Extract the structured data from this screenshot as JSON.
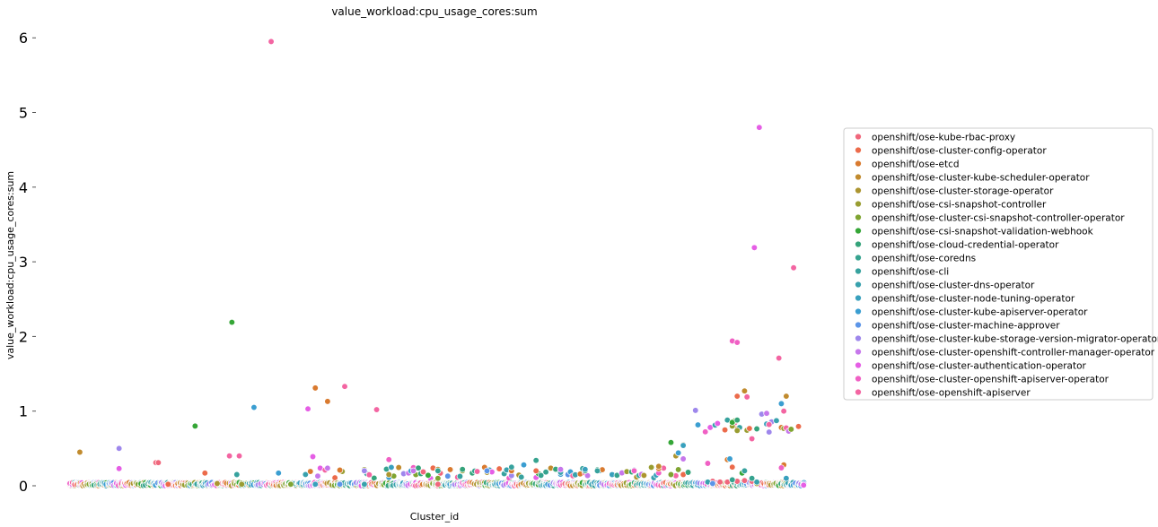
{
  "chart_data": {
    "type": "scatter",
    "title": "value_workload:cpu_usage_cores:sum",
    "xlabel": "Cluster_id",
    "ylabel": "value_workload:cpu_usage_cores:sum",
    "ylim": [
      -0.1,
      6.15
    ],
    "yticks": [
      0,
      1,
      2,
      3,
      4,
      5,
      6
    ],
    "ytick_labels": [
      "0",
      "1",
      "2",
      "3",
      "4",
      "5",
      "6"
    ],
    "x_tick_labels_shown": false,
    "grid": false,
    "legend_position": "center-right",
    "n_clusters": 300,
    "series": [
      {
        "name": "openshift/ose-kube-rbac-proxy",
        "color": "#f0677c",
        "points": [
          [
            35,
            0.31
          ],
          [
            36,
            0.31
          ],
          [
            150,
            0.02
          ],
          [
            260,
            0.05
          ],
          [
            262,
            0.06
          ],
          [
            265,
            0.05
          ],
          [
            268,
            0.05
          ],
          [
            272,
            0.06
          ],
          [
            275,
            0.07
          ],
          [
            278,
            0.06
          ]
        ]
      },
      {
        "name": "openshift/ose-cluster-config-operator",
        "color": "#ec6b4b",
        "points": [
          [
            40,
            0.02
          ],
          [
            55,
            0.17
          ],
          [
            190,
            0.2
          ],
          [
            250,
            0.15
          ],
          [
            270,
            0.25
          ],
          [
            272,
            1.2
          ]
        ]
      },
      {
        "name": "openshift/ose-etcd",
        "color": "#d97a2f",
        "points": [
          [
            100,
            1.31
          ],
          [
            105,
            1.13
          ],
          [
            110,
            0.21
          ],
          [
            180,
            0.2
          ],
          [
            240,
            0.23
          ],
          [
            268,
            0.35
          ],
          [
            291,
            0.28
          ]
        ]
      },
      {
        "name": "openshift/ose-cluster-kube-scheduler-operator",
        "color": "#c18b2e",
        "points": [
          [
            4,
            0.45
          ],
          [
            120,
            0.2
          ],
          [
            150,
            0.22
          ],
          [
            240,
            0.26
          ],
          [
            250,
            0.55
          ],
          [
            275,
            1.27
          ],
          [
            292,
            1.2
          ]
        ]
      },
      {
        "name": "openshift/ose-cluster-storage-operator",
        "color": "#ac9530",
        "points": [
          [
            60,
            0.03
          ],
          [
            130,
            0.15
          ],
          [
            170,
            0.18
          ],
          [
            247,
            0.4
          ],
          [
            280,
            0.03
          ]
        ]
      },
      {
        "name": "openshift/ose-csi-snapshot-controller",
        "color": "#999d31",
        "points": [
          [
            70,
            0.02
          ],
          [
            160,
            0.2
          ],
          [
            200,
            0.22
          ],
          [
            270,
            0.8
          ],
          [
            272,
            0.74
          ]
        ]
      },
      {
        "name": "openshift/ose-cluster-csi-snapshot-controller-operator",
        "color": "#7fa431",
        "points": [
          [
            90,
            0.02
          ],
          [
            150,
            0.1
          ],
          [
            245,
            0.15
          ],
          [
            271,
            0.87
          ]
        ]
      },
      {
        "name": "openshift/ose-csi-snapshot-validation-webhook",
        "color": "#35a637",
        "points": [
          [
            51,
            0.8
          ],
          [
            66,
            2.19
          ],
          [
            146,
            0.14
          ],
          [
            245,
            0.58
          ],
          [
            270,
            0.85
          ],
          [
            274,
            0.17
          ]
        ]
      },
      {
        "name": "openshift/ose-cloud-credential-operator",
        "color": "#35a37a",
        "points": [
          [
            160,
            0.22
          ],
          [
            210,
            0.2
          ],
          [
            252,
            0.18
          ],
          [
            272,
            0.88
          ]
        ]
      },
      {
        "name": "openshift/ose-coredns",
        "color": "#36a38f",
        "points": [
          [
            150,
            0.2
          ],
          [
            190,
            0.34
          ],
          [
            270,
            0.08
          ],
          [
            278,
            0.1
          ]
        ]
      },
      {
        "name": "openshift/ose-cli",
        "color": "#37a29e",
        "points": [
          [
            68,
            0.15
          ],
          [
            180,
            0.25
          ],
          [
            215,
            0.2
          ],
          [
            275,
            0.2
          ]
        ]
      },
      {
        "name": "openshift/ose-cluster-dns-operator",
        "color": "#38a1ad",
        "points": [
          [
            120,
            0.02
          ],
          [
            200,
            0.18
          ],
          [
            260,
            0.05
          ],
          [
            280,
            0.05
          ]
        ]
      },
      {
        "name": "openshift/ose-cluster-node-tuning-operator",
        "color": "#39a0bd",
        "points": [
          [
            100,
            0.02
          ],
          [
            210,
            0.22
          ],
          [
            250,
            0.54
          ],
          [
            292,
            0.1
          ]
        ]
      },
      {
        "name": "openshift/ose-cluster-kube-apiserver-operator",
        "color": "#3b9ed1",
        "points": [
          [
            75,
            1.05
          ],
          [
            85,
            0.17
          ],
          [
            185,
            0.28
          ],
          [
            248,
            0.44
          ],
          [
            269,
            0.36
          ],
          [
            290,
            1.1
          ]
        ]
      },
      {
        "name": "openshift/ose-cluster-machine-approver",
        "color": "#5c95e8",
        "points": [
          [
            110,
            0.02
          ],
          [
            170,
            0.2
          ],
          [
            262,
            0.03
          ]
        ]
      },
      {
        "name": "openshift/ose-cluster-kube-storage-version-migrator-operator",
        "color": "#9e87ec",
        "points": [
          [
            20,
            0.5
          ],
          [
            120,
            0.2
          ],
          [
            255,
            1.01
          ],
          [
            282,
            0.96
          ]
        ]
      },
      {
        "name": "openshift/ose-cluster-openshift-controller-manager-operator",
        "color": "#c677eb",
        "points": [
          [
            140,
            0.2
          ],
          [
            200,
            0.22
          ],
          [
            250,
            0.36
          ],
          [
            284,
            0.97
          ]
        ]
      },
      {
        "name": "openshift/ose-cluster-authentication-operator",
        "color": "#e55ee5",
        "points": [
          [
            20,
            0.23
          ],
          [
            97,
            1.03
          ],
          [
            99,
            0.39
          ],
          [
            281,
            4.8
          ],
          [
            279,
            3.19
          ]
        ]
      },
      {
        "name": "openshift/ose-cluster-openshift-apiserver-operator",
        "color": "#f060c4",
        "points": [
          [
            130,
            0.35
          ],
          [
            230,
            0.2
          ],
          [
            260,
            0.3
          ],
          [
            270,
            1.94
          ],
          [
            272,
            1.92
          ],
          [
            290,
            0.24
          ]
        ]
      },
      {
        "name": "openshift/ose-openshift-apiserver",
        "color": "#f365a2",
        "points": [
          [
            65,
            0.4
          ],
          [
            69,
            0.4
          ],
          [
            82,
            5.95
          ],
          [
            112,
            1.33
          ],
          [
            125,
            1.02
          ],
          [
            276,
            1.19
          ],
          [
            289,
            1.71
          ],
          [
            295,
            2.92
          ],
          [
            291,
            1.0
          ],
          [
            278,
            0.63
          ],
          [
            285,
            0.82
          ]
        ]
      }
    ]
  }
}
